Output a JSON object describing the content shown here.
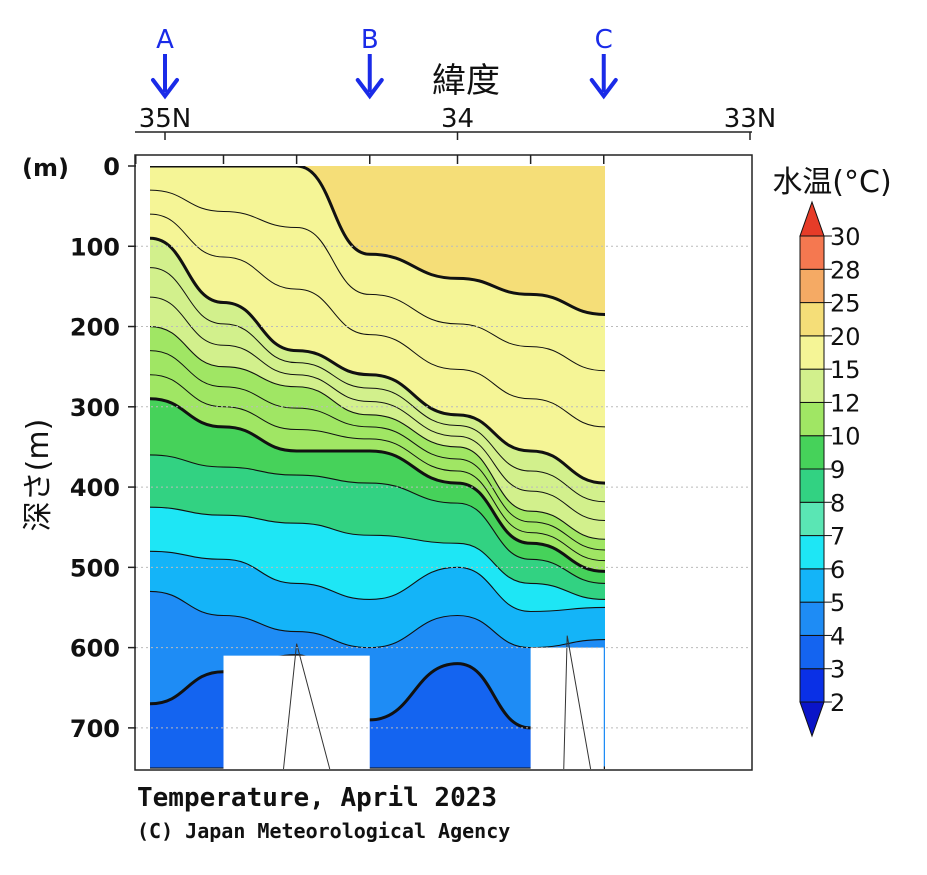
{
  "chart_data": {
    "type": "contour",
    "title": "Temperature, April 2023",
    "credit": "(C) Japan Meteorological Agency",
    "xlabel": "緯度",
    "ylabel": "深さ(m)",
    "ylabel_unit": "(m)",
    "x_ticks": [
      {
        "value": 35.0,
        "label": "35N"
      },
      {
        "value": 34.0,
        "label": "34"
      },
      {
        "value": 33.0,
        "label": "33N"
      }
    ],
    "x_range": [
      35.1,
      33.0
    ],
    "station_ticks": [
      35.1,
      34.8,
      34.55,
      34.3,
      34.0,
      33.75,
      33.5
    ],
    "y_ticks": [
      0,
      100,
      200,
      300,
      400,
      500,
      600,
      700
    ],
    "y_range": [
      0,
      750
    ],
    "markers": [
      {
        "label": "A",
        "lat": 35.0,
        "color": "#1a2be8"
      },
      {
        "label": "B",
        "lat": 34.3,
        "color": "#1a2be8"
      },
      {
        "label": "C",
        "lat": 33.5,
        "color": "#1a2be8"
      }
    ],
    "colorbar": {
      "title": "水温(°C)",
      "levels": [
        2,
        3,
        4,
        5,
        6,
        7,
        8,
        9,
        10,
        12,
        15,
        20,
        25,
        28,
        30
      ],
      "labels": [
        "2",
        "3",
        "4",
        "5",
        "6",
        "7",
        "8",
        "9",
        "10",
        "12",
        "15",
        "20",
        "25",
        "28",
        "30"
      ],
      "colors": [
        "#0a14c8",
        "#0a30e6",
        "#1464f0",
        "#1e8cf5",
        "#14b4f8",
        "#1ee6f5",
        "#5ae6b4",
        "#32d282",
        "#46d25a",
        "#a0e664",
        "#d2f08c",
        "#f5f596",
        "#f5de78",
        "#f5aa64",
        "#f57850",
        "#e63c28"
      ]
    },
    "bands": [
      {
        "level": "20-25",
        "color": "#f5de78",
        "upper_depth": [
          0,
          0,
          0,
          0,
          0,
          0,
          0
        ],
        "lower_depth": [
          0,
          0,
          0,
          110,
          140,
          160,
          185
        ]
      },
      {
        "level": "15-20",
        "color": "#f5f596",
        "upper_depth": [
          0,
          0,
          0,
          110,
          140,
          160,
          185
        ],
        "lower_depth": [
          90,
          170,
          230,
          260,
          310,
          355,
          395
        ]
      },
      {
        "level": "12-15",
        "color": "#d2f08c",
        "upper_depth": [
          90,
          170,
          230,
          260,
          310,
          355,
          395
        ],
        "lower_depth": [
          200,
          250,
          275,
          310,
          350,
          430,
          465
        ]
      },
      {
        "level": "10-12",
        "color": "#a0e664",
        "upper_depth": [
          200,
          250,
          275,
          310,
          350,
          430,
          465
        ],
        "lower_depth": [
          290,
          325,
          355,
          355,
          395,
          470,
          505
        ]
      },
      {
        "level": "9-10",
        "color": "#46d25a",
        "upper_depth": [
          290,
          325,
          355,
          355,
          395,
          470,
          505
        ],
        "lower_depth": [
          360,
          375,
          385,
          395,
          420,
          490,
          520
        ]
      },
      {
        "level": "8-9",
        "color": "#32d282",
        "upper_depth": [
          360,
          375,
          385,
          395,
          420,
          490,
          520
        ],
        "lower_depth": [
          425,
          435,
          445,
          460,
          470,
          520,
          540
        ]
      },
      {
        "level": "7-8",
        "color": "#1ee6f5",
        "upper_depth": [
          425,
          435,
          445,
          460,
          470,
          520,
          540
        ],
        "lower_depth": [
          480,
          490,
          520,
          540,
          500,
          555,
          550
        ]
      },
      {
        "level": "6-7",
        "color": "#14b4f8",
        "upper_depth": [
          480,
          490,
          520,
          540,
          500,
          555,
          550
        ],
        "lower_depth": [
          530,
          560,
          580,
          600,
          560,
          600,
          590
        ]
      },
      {
        "level": "5-6",
        "color": "#1e8cf5",
        "upper_depth": [
          530,
          560,
          580,
          600,
          560,
          600,
          590
        ],
        "lower_depth": [
          670,
          630,
          610,
          690,
          620,
          700,
          750
        ]
      },
      {
        "level": "4-5",
        "color": "#1464f0",
        "upper_depth": [
          670,
          630,
          610,
          690,
          620,
          700,
          750
        ],
        "lower_depth": [
          750,
          750,
          750,
          750,
          750,
          750,
          750
        ]
      }
    ],
    "bottom_gaps": [
      {
        "from_lat": 34.8,
        "to_lat": 34.3,
        "depth": 610
      },
      {
        "from_lat": 33.75,
        "to_lat": 33.5,
        "depth": 600
      }
    ]
  }
}
